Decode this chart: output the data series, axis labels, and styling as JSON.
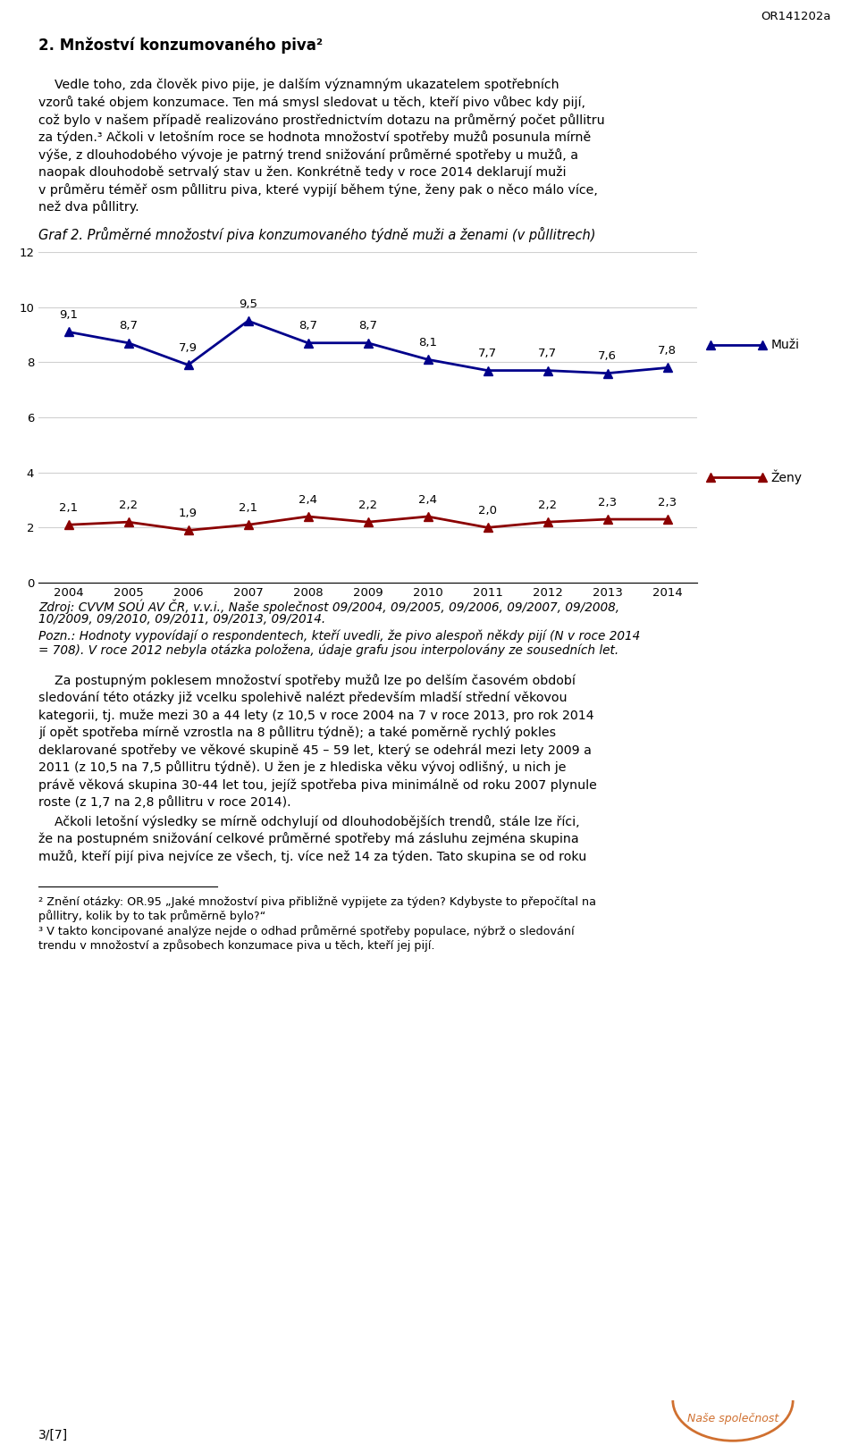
{
  "page_label": "OR141202a",
  "page_number": "3/[7]",
  "section_title": "2. Mnžoství konzumovaného piva²",
  "para1": "Vedle toho, zda člověk pivo pije, je dalším významným ukazatelem spotřebních vzorů také objem konzumace. Ten má smysl sledovat u těch, kteří pivo vůbec kdy pijí, což bylo v našem případě realizováno prostřednictvím dotazu na průměrný počet půllitry za týden.",
  "superscript3": "3",
  "para1b": " Ačkoli v letošním roce se hodnota množoství spotřeby mužů posunula mírně výše, z dlouhodobého vývoje je patrný trend snižování průměrné spotřeby u mužů, a naopak dlouhodobě setrvalý stav u žen. Konkrétně tedy v roce 2014 deklarují muži v průměru téměř osm půllitru piva, které vypijí během týne, ženy pak o něco málo více, než dva půllitry.",
  "graph_title": "Graf 2. Průměrné množoství piva konzumovaného týdně muži a ženami (v půllitrech)",
  "years": [
    2004,
    2005,
    2006,
    2007,
    2008,
    2009,
    2010,
    2011,
    2012,
    2013,
    2014
  ],
  "muzi": [
    9.1,
    8.7,
    7.9,
    9.5,
    8.7,
    8.7,
    8.1,
    7.7,
    7.7,
    7.6,
    7.8
  ],
  "zeny": [
    2.1,
    2.2,
    1.9,
    2.1,
    2.4,
    2.2,
    2.4,
    2.0,
    2.2,
    2.3,
    2.3
  ],
  "muzi_color": "#00008B",
  "zeny_color": "#8B0000",
  "muzi_label": "Muži",
  "zeny_label": "Ženy",
  "ylim": [
    0,
    12
  ],
  "yticks": [
    0,
    2,
    4,
    6,
    8,
    10,
    12
  ],
  "source_text": "Zdroj: CVVM SOÚ AV ČR, v.v.i., Naše společnost 09/2004, 09/2005, 09/2006, 09/2007, 09/2008,\n10/2009, 09/2010, 09/2011, 09/2013, 09/2014.",
  "pozn_text": "Pozn.: Hodnoty vypovídají o respondentech, kteří uvedli, že pivo alespoň někdy pijí (N v roce 2014\n= 708). V roce 2012 nebyla otázka položena, údaje grafu jsou interpolovány ze sousedních let.",
  "para2": "Za postupným poklesem množoství spotřeby mužů lze po delším časovém období sledování této otázky již vcelku spolehlivě nalézt především mladší střední věkovou kategorii, tj. muže mezi 30 a 44 lety (z 10,5 v roce 2004 na 7 v roce 2013, pro rok 2014 jí opět spotřeba mírně vzrostla na 8 půllitru týdně); a také poměrně rychlý pokles deklarované spotřeby ve věkové skupině 45 – 59 let, který se odehrál mezi lety 2009 a 2011 (z 10,5 na 7,5 půllitru týdně). U žen je z hlediska věku vývoj odlišný, u nich je právě věková skupina 30-44 let tou, jejíž spotřeba piva minimálně od roku 2007 plynule roste (z 1,7 na 2,8 půllitru v roce 2014).",
  "para3": "Ačkoli letošní výsledky se mírně odchylují od dlouhodobějších trendů, stále lze říci, že na postupném snižování celkové průměrné spotřeby má zásluhu zejména skupina mužů, kteří pijí piva nejvíce ze všech, tj. více než 14 za týden. Tato skupina se od roku",
  "footnote2": "² Znění otázky: OR.95 „Jaké množoství piva přibližně vypijete za týden? Kdybyste to přepočítal na půllitry, kolik by to tak průměrně bylo?“",
  "footnote3": "³ V takto koncipované analýze nejde o odhad průměrné spotřeby populace, nýbrž o sledování trendu v množoství a způsobech konzumace piva u těch, kteří jej pijí.",
  "bg_color": "#ffffff",
  "text_color": "#000000",
  "grid_color": "#d0d0d0"
}
